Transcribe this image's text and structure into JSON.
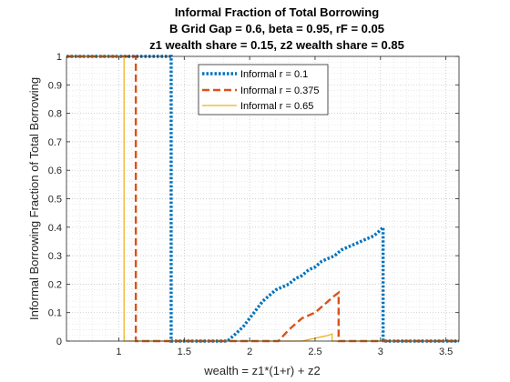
{
  "chart_data": {
    "type": "line",
    "title_lines": [
      "Informal Fraction of Total Borrowing",
      "B Grid Gap = 0.6, beta = 0.95, rF = 0.05",
      "z1 wealth share = 0.15, z2 wealth share = 0.85"
    ],
    "xlabel": "wealth = z1*(1+r) + z2",
    "ylabel": "Informal Borrowing Fraction of Total Borrowing",
    "xlim": [
      0.6,
      3.6
    ],
    "ylim": [
      0,
      1
    ],
    "x_ticks": [
      "1",
      "1.5",
      "2",
      "2.5",
      "3",
      "3.5"
    ],
    "y_ticks": [
      "0",
      "0.1",
      "0.2",
      "0.3",
      "0.4",
      "0.5",
      "0.6",
      "0.7",
      "0.8",
      "0.9",
      "1"
    ],
    "grid": "major and minor, dotted",
    "legend_position": "top-center",
    "series": [
      {
        "name": "Informal r = 0.1",
        "color": "#0072BD",
        "style": "dotted",
        "points": [
          [
            0.6,
            1
          ],
          [
            1.4,
            1
          ],
          [
            1.4,
            0
          ],
          [
            1.83,
            0
          ],
          [
            1.88,
            0.02
          ],
          [
            1.95,
            0.05
          ],
          [
            2.0,
            0.08
          ],
          [
            2.05,
            0.11
          ],
          [
            2.1,
            0.14
          ],
          [
            2.15,
            0.16
          ],
          [
            2.2,
            0.18
          ],
          [
            2.25,
            0.19
          ],
          [
            2.3,
            0.2
          ],
          [
            2.35,
            0.22
          ],
          [
            2.4,
            0.23
          ],
          [
            2.45,
            0.25
          ],
          [
            2.5,
            0.26
          ],
          [
            2.55,
            0.28
          ],
          [
            2.6,
            0.29
          ],
          [
            2.65,
            0.3
          ],
          [
            2.7,
            0.32
          ],
          [
            2.75,
            0.33
          ],
          [
            2.8,
            0.34
          ],
          [
            2.85,
            0.35
          ],
          [
            2.9,
            0.36
          ],
          [
            2.95,
            0.37
          ],
          [
            3.0,
            0.39
          ],
          [
            3.02,
            0.4
          ],
          [
            3.02,
            0
          ],
          [
            3.6,
            0
          ]
        ]
      },
      {
        "name": "Informal r = 0.375",
        "color": "#D95319",
        "style": "dashed",
        "points": [
          [
            0.6,
            1
          ],
          [
            1.13,
            1
          ],
          [
            1.13,
            0
          ],
          [
            2.22,
            0
          ],
          [
            2.26,
            0.02
          ],
          [
            2.3,
            0.04
          ],
          [
            2.35,
            0.06
          ],
          [
            2.4,
            0.08
          ],
          [
            2.45,
            0.09
          ],
          [
            2.5,
            0.1
          ],
          [
            2.55,
            0.12
          ],
          [
            2.6,
            0.14
          ],
          [
            2.65,
            0.16
          ],
          [
            2.68,
            0.17
          ],
          [
            2.68,
            0
          ],
          [
            3.6,
            0
          ]
        ]
      },
      {
        "name": "Informal r = 0.65",
        "color": "#EDB120",
        "style": "solid",
        "points": [
          [
            0.6,
            1
          ],
          [
            1.04,
            1
          ],
          [
            1.04,
            0
          ],
          [
            2.4,
            0
          ],
          [
            2.45,
            0.005
          ],
          [
            2.5,
            0.01
          ],
          [
            2.55,
            0.015
          ],
          [
            2.6,
            0.02
          ],
          [
            2.63,
            0.025
          ],
          [
            2.63,
            0
          ],
          [
            3.6,
            0
          ]
        ]
      }
    ]
  }
}
